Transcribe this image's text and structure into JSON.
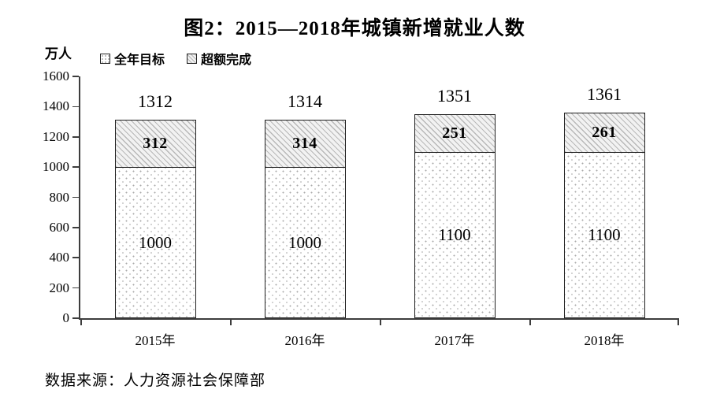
{
  "figure": {
    "title": "图2：2015—2018年城镇新增就业人数",
    "y_unit_label": "万人",
    "source_note": "数据来源：人力资源社会保障部"
  },
  "legend": {
    "items": [
      {
        "label": "全年目标",
        "pattern": "dots"
      },
      {
        "label": "超额完成",
        "pattern": "hatch"
      }
    ]
  },
  "chart_data": {
    "type": "bar",
    "stacked": true,
    "title": "图2：2015—2018年城镇新增就业人数",
    "ylabel": "万人",
    "xlabel": "",
    "categories": [
      "2015年",
      "2016年",
      "2017年",
      "2018年"
    ],
    "series": [
      {
        "name": "全年目标",
        "pattern": "dots",
        "values": [
          1000,
          1000,
          1100,
          1100
        ]
      },
      {
        "name": "超额完成",
        "pattern": "hatch",
        "values": [
          312,
          314,
          251,
          261
        ]
      }
    ],
    "totals": [
      1312,
      1314,
      1351,
      1361
    ],
    "ylim": [
      0,
      1600
    ],
    "yticks": [
      0,
      200,
      400,
      600,
      800,
      1000,
      1200,
      1400,
      1600
    ],
    "grid": false,
    "legend_position": "top-left",
    "source": "数据来源：人力资源社会保障部"
  },
  "colors": {
    "background": "#ffffff",
    "text": "#000000",
    "axis": "#3d3d3d",
    "bar_border": "#1f1f1f",
    "hatch_line": "#b8b8b8",
    "hatch_bg": "#f2f2f2",
    "dot": "#ababab",
    "dot_bg": "#ffffff"
  }
}
